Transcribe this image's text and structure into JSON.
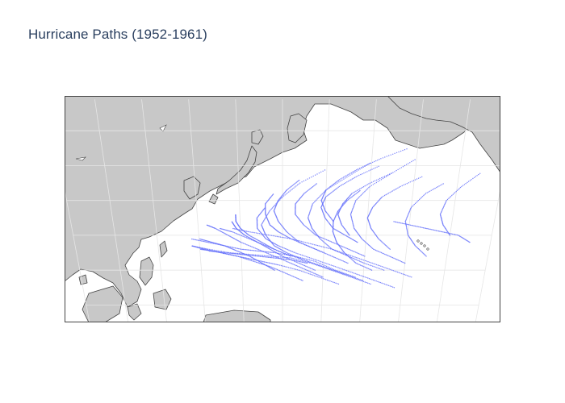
{
  "title": "Hurricane Paths (1952-1961)",
  "colors": {
    "land": "#c8c8c8",
    "ocean": "#ffffff",
    "coastline": "#444444",
    "graticule": "#e6e6e6",
    "track": "#636efa"
  },
  "chart_data": {
    "type": "scatter",
    "geo_type": "scattergeo",
    "projection": "natural earth",
    "lon_range": [
      80,
      180
    ],
    "lat_range": [
      -5,
      60
    ],
    "marker_size": 1,
    "showland": true,
    "showlegend": false,
    "title": "Hurricane Paths (1952-1961)",
    "series": [
      {
        "name": "",
        "description_of_region": "Western North Pacific typhoon tracks",
        "tracks": [
          [
            [
              148,
              8
            ],
            [
              143,
              10
            ],
            [
              138,
              12.5
            ],
            [
              133,
              14
            ],
            [
              128,
              15
            ],
            [
              124,
              15.5
            ],
            [
              120,
              16
            ],
            [
              116,
              17
            ],
            [
              112,
              18
            ],
            [
              108,
              19
            ]
          ],
          [
            [
              150,
              7
            ],
            [
              145,
              9
            ],
            [
              140,
              11
            ],
            [
              135,
              13
            ],
            [
              130,
              15
            ],
            [
              126,
              17
            ],
            [
              122,
              19
            ],
            [
              118,
              21
            ],
            [
              115,
              22
            ]
          ],
          [
            [
              145,
              9
            ],
            [
              140,
              11
            ],
            [
              135,
              13
            ],
            [
              131,
              15
            ],
            [
              128,
              17
            ],
            [
              126,
              20
            ],
            [
              125,
              23
            ],
            [
              127,
              27
            ],
            [
              130,
              31
            ],
            [
              134,
              35
            ],
            [
              140,
              39
            ]
          ],
          [
            [
              152,
              6
            ],
            [
              147,
              8
            ],
            [
              142,
              10
            ],
            [
              137,
              12
            ],
            [
              132,
              13.5
            ],
            [
              127,
              14
            ],
            [
              122,
              14.5
            ],
            [
              117,
              15
            ],
            [
              112,
              16
            ],
            [
              108,
              17
            ]
          ],
          [
            [
              140,
              8
            ],
            [
              136,
              10
            ],
            [
              132,
              12
            ],
            [
              128,
              14
            ],
            [
              124,
              16
            ],
            [
              120,
              18
            ],
            [
              117,
              20
            ],
            [
              114,
              22
            ],
            [
              112,
              23
            ]
          ],
          [
            [
              155,
              10
            ],
            [
              150,
              12
            ],
            [
              146,
              14
            ],
            [
              142,
              16
            ],
            [
              139,
              19
            ],
            [
              137,
              22
            ],
            [
              136,
              25
            ],
            [
              137,
              29
            ],
            [
              140,
              33
            ],
            [
              145,
              37
            ],
            [
              150,
              41
            ]
          ],
          [
            [
              146,
              12
            ],
            [
              142,
              14
            ],
            [
              138,
              16
            ],
            [
              134,
              18
            ],
            [
              131,
              21
            ],
            [
              129,
              24
            ],
            [
              128,
              27
            ],
            [
              129,
              30
            ],
            [
              131,
              33
            ],
            [
              134,
              36
            ]
          ],
          [
            [
              135,
              7
            ],
            [
              131,
              9
            ],
            [
              127,
              11
            ],
            [
              123,
              12.5
            ],
            [
              119,
              14
            ],
            [
              115,
              15
            ],
            [
              111,
              16
            ],
            [
              108,
              17
            ]
          ],
          [
            [
              160,
              12
            ],
            [
              156,
              14
            ],
            [
              152,
              16
            ],
            [
              149,
              19
            ],
            [
              147,
              22
            ],
            [
              146,
              26
            ],
            [
              147,
              30
            ],
            [
              150,
              34
            ],
            [
              155,
              38
            ],
            [
              160,
              42
            ]
          ],
          [
            [
              138,
              10
            ],
            [
              134,
              12
            ],
            [
              130,
              14
            ],
            [
              127,
              16
            ],
            [
              124,
              18
            ],
            [
              121,
              20
            ],
            [
              119,
              22
            ],
            [
              118,
              24
            ]
          ],
          [
            [
              150,
              14
            ],
            [
              146,
              16
            ],
            [
              142,
              18
            ],
            [
              138,
              20
            ],
            [
              135,
              23
            ],
            [
              133,
              26
            ],
            [
              133,
              29
            ],
            [
              135,
              32
            ],
            [
              138,
              35
            ]
          ],
          [
            [
              162,
              8
            ],
            [
              157,
              10
            ],
            [
              152,
              12
            ],
            [
              147,
              14
            ],
            [
              142,
              16
            ],
            [
              137,
              17.5
            ],
            [
              132,
              19
            ],
            [
              127,
              20
            ],
            [
              122,
              21
            ],
            [
              118,
              22
            ]
          ],
          [
            [
              144,
              6
            ],
            [
              139,
              8
            ],
            [
              134,
              10
            ],
            [
              129,
              11.5
            ],
            [
              125,
              12.5
            ],
            [
              121,
              13.5
            ],
            [
              117,
              14.5
            ],
            [
              113,
              15.5
            ],
            [
              110,
              16
            ]
          ],
          [
            [
              156,
              16
            ],
            [
              153,
              19
            ],
            [
              151,
              22
            ],
            [
              150,
              25
            ],
            [
              151,
              28
            ],
            [
              153,
              31
            ],
            [
              157,
              34
            ],
            [
              162,
              37
            ]
          ],
          [
            [
              132,
              14
            ],
            [
              128,
              16
            ],
            [
              125,
              18
            ],
            [
              122,
              20
            ],
            [
              120,
              22
            ],
            [
              119,
              24
            ],
            [
              119,
              26
            ]
          ],
          [
            [
              148,
              18
            ],
            [
              145,
              20
            ],
            [
              142,
              22
            ],
            [
              140,
              25
            ],
            [
              139,
              28
            ],
            [
              140,
              31
            ],
            [
              143,
              34
            ],
            [
              147,
              37
            ],
            [
              152,
              40
            ]
          ],
          [
            [
              158,
              5
            ],
            [
              153,
              7
            ],
            [
              148,
              9
            ],
            [
              143,
              11
            ],
            [
              138,
              13
            ],
            [
              133,
              15
            ],
            [
              129,
              17
            ],
            [
              126,
              19
            ],
            [
              124,
              22
            ],
            [
              124,
              25
            ],
            [
              126,
              28
            ]
          ],
          [
            [
              140,
              15
            ],
            [
              136,
              17
            ],
            [
              132,
              19
            ],
            [
              129,
              21
            ],
            [
              127,
              23
            ],
            [
              126,
              26
            ],
            [
              126,
              29
            ],
            [
              128,
              32
            ]
          ],
          [
            [
              165,
              14
            ],
            [
              162,
              17
            ],
            [
              160,
              20
            ],
            [
              159,
              24
            ],
            [
              160,
              28
            ],
            [
              163,
              32
            ],
            [
              167,
              35
            ]
          ],
          [
            [
              136,
              12
            ],
            [
              132,
              13
            ],
            [
              128,
              13.5
            ],
            [
              124,
              14
            ],
            [
              120,
              14.5
            ],
            [
              116,
              15
            ],
            [
              112,
              15.5
            ]
          ],
          [
            [
              152,
              10
            ],
            [
              148,
              12
            ],
            [
              145,
              15
            ],
            [
              143,
              18
            ],
            [
              142,
              21
            ],
            [
              142,
              24
            ],
            [
              143,
              27
            ],
            [
              145,
              30
            ],
            [
              148,
              33
            ]
          ],
          [
            [
              128,
              10
            ],
            [
              125,
              12
            ],
            [
              122,
              14
            ],
            [
              119,
              15.5
            ],
            [
              116,
              17
            ],
            [
              113,
              18
            ],
            [
              110,
              19
            ]
          ],
          [
            [
              146,
              20
            ],
            [
              144,
              23
            ],
            [
              143,
              26
            ],
            [
              144,
              29
            ],
            [
              146,
              32
            ],
            [
              150,
              35
            ],
            [
              155,
              38
            ]
          ],
          [
            [
              170,
              20
            ],
            [
              168,
              23
            ],
            [
              167,
              26
            ],
            [
              168,
              30
            ],
            [
              171,
              34
            ],
            [
              175,
              38
            ]
          ],
          [
            [
              142,
              24
            ],
            [
              140,
              27
            ],
            [
              139,
              30
            ],
            [
              140,
              33
            ],
            [
              143,
              36
            ],
            [
              147,
              39
            ],
            [
              152,
              42
            ],
            [
              158,
              45
            ]
          ],
          [
            [
              175,
              18
            ],
            [
              172,
              20
            ],
            [
              168,
              21
            ],
            [
              164,
              22
            ],
            [
              160,
              23
            ],
            [
              156,
              24
            ]
          ]
        ]
      }
    ]
  }
}
